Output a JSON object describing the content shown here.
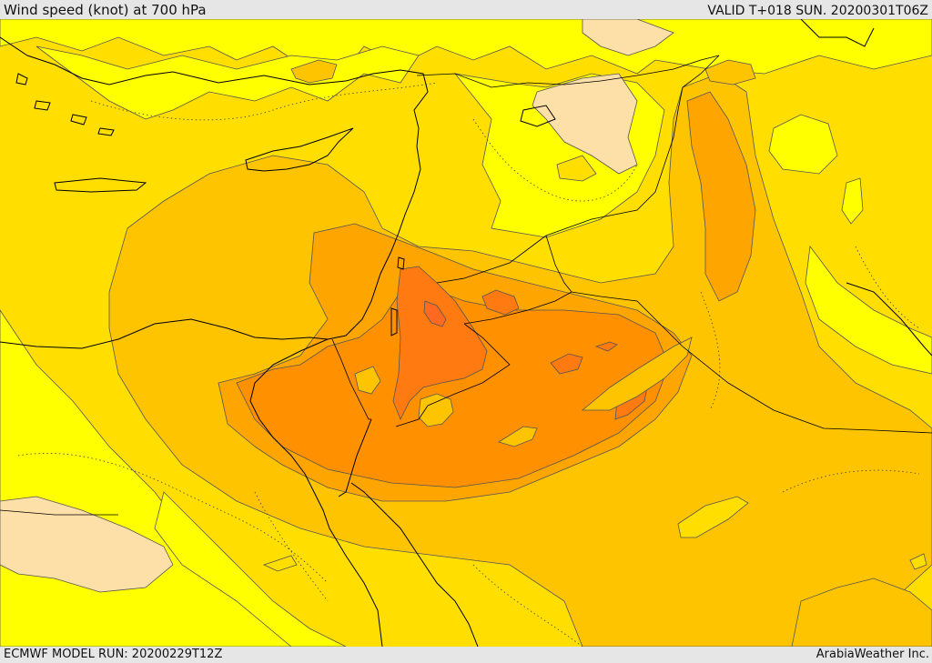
{
  "header": {
    "title": "Wind speed (knot) at 700 hPa",
    "valid": "VALID T+018 SUN. 20200301T06Z"
  },
  "footer": {
    "model_run": "ECMWF MODEL RUN: 20200229T12Z",
    "credit": "ArabiaWeather Inc."
  },
  "map": {
    "shading_colors": {
      "light_tan": "#fde0a8",
      "yellow": "#ffff00",
      "gold": "#ffde00",
      "amber": "#ffc400",
      "orange_light": "#ffa500",
      "orange": "#ff9000",
      "orange_dark": "#ff7a10",
      "orange_deep": "#ff6a20"
    },
    "contour_color": "#555555",
    "border_color": "#000000"
  }
}
